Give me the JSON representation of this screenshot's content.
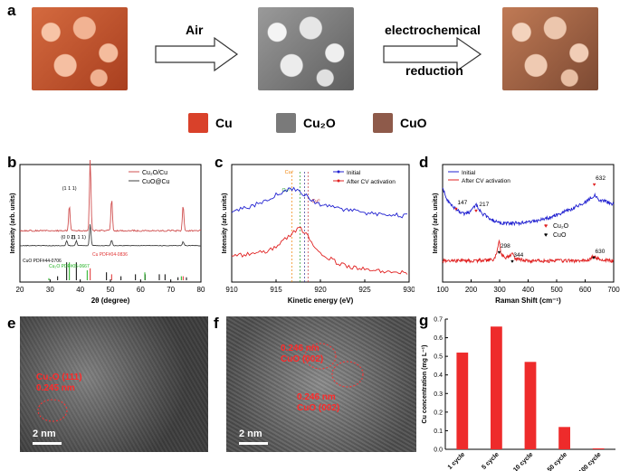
{
  "panel_a": {
    "label": "a",
    "step1": "Air",
    "step2_line1": "electrochemical",
    "step2_line2": "reduction",
    "legend": [
      "Cu",
      "Cu₂O",
      "CuO"
    ],
    "legend_colors": [
      "#d9412a",
      "#7a7a7a",
      "#8e5a4a"
    ]
  },
  "panel_b": {
    "label": "b"
  },
  "panel_c": {
    "label": "c"
  },
  "panel_d": {
    "label": "d"
  },
  "panel_e": {
    "label": "e",
    "annotation_line1": "Cu₂O (111)",
    "annotation_line2": "0.245 nm",
    "scale": "2 nm"
  },
  "panel_f": {
    "label": "f",
    "annotation1_line1": "0.246 nm",
    "annotation1_line2": "CuO (002)",
    "annotation2_line1": "0.246 nm",
    "annotation2_line2": "CuO (002)",
    "scale": "2 nm"
  },
  "panel_g": {
    "label": "g"
  },
  "chart_data": [
    {
      "type": "line",
      "panel": "b",
      "xlabel": "2θ (degree)",
      "ylabel": "Intensity (arb. units)",
      "xlim": [
        20,
        80
      ],
      "xticks": [
        "20",
        "30",
        "40",
        "50",
        "60",
        "70",
        "80"
      ],
      "legend": [
        "Cu₂O/Cu",
        "CuO@Cu"
      ],
      "series": [
        {
          "name": "Cu₂O/Cu",
          "color": "#d05050",
          "peaks": [
            [
              36.4,
              0.35
            ],
            [
              43.3,
              1.0
            ],
            [
              50.4,
              0.45
            ],
            [
              74.1,
              0.35
            ]
          ]
        },
        {
          "name": "CuO@Cu",
          "color": "#404040",
          "peaks": [
            [
              35.5,
              0.18
            ],
            [
              38.7,
              0.18
            ],
            [
              43.3,
              0.8
            ],
            [
              50.4,
              0.2
            ],
            [
              74.1,
              0.15
            ]
          ]
        }
      ],
      "annotations": [
        "(1 1 1)",
        "(0 0 2)",
        "(1 1 1)"
      ],
      "references": [
        {
          "label": "CuO PDF#44-0706",
          "color": "#000000",
          "lines": [
            [
              32.5,
              0.2
            ],
            [
              35.5,
              0.9
            ],
            [
              38.7,
              0.9
            ],
            [
              48.7,
              0.4
            ],
            [
              53.5,
              0.2
            ],
            [
              58.3,
              0.3
            ],
            [
              61.5,
              0.3
            ],
            [
              66.2,
              0.3
            ],
            [
              68.1,
              0.3
            ],
            [
              72.4,
              0.15
            ],
            [
              75.2,
              0.15
            ]
          ]
        },
        {
          "label": "Cu PDF#04-0836",
          "color": "#e03030",
          "lines": [
            [
              43.3,
              0.6
            ],
            [
              50.4,
              0.3
            ],
            [
              74.1,
              0.2
            ]
          ]
        },
        {
          "label": "Cu₂O PDF#05-0667",
          "color": "#20b020",
          "lines": [
            [
              29.6,
              0.1
            ],
            [
              36.4,
              0.9
            ],
            [
              42.3,
              0.5
            ],
            [
              61.4,
              0.4
            ],
            [
              73.5,
              0.2
            ]
          ]
        }
      ]
    },
    {
      "type": "line",
      "panel": "c",
      "xlabel": "Kinetic energy (eV)",
      "ylabel": "Intensity (arb. units)",
      "xlim": [
        910,
        930
      ],
      "xticks": [
        "910",
        "915",
        "920",
        "925",
        "930"
      ],
      "legend": [
        "Initial",
        "After CV activation"
      ],
      "series": [
        {
          "name": "Initial",
          "color": "#2020d0",
          "x": [
            910,
            912,
            914,
            915,
            916,
            917,
            918,
            919,
            920,
            922,
            924,
            926,
            928,
            930
          ],
          "y": [
            0.6,
            0.64,
            0.7,
            0.74,
            0.78,
            0.8,
            0.75,
            0.7,
            0.66,
            0.62,
            0.6,
            0.58,
            0.57,
            0.56
          ]
        },
        {
          "name": "After CV activation",
          "color": "#e02020",
          "x": [
            910,
            912,
            914,
            915,
            916,
            917,
            917.5,
            918,
            919,
            920,
            922,
            924,
            926,
            928,
            930
          ],
          "y": [
            0.22,
            0.24,
            0.26,
            0.3,
            0.36,
            0.42,
            0.46,
            0.44,
            0.34,
            0.24,
            0.16,
            0.12,
            0.1,
            0.09,
            0.08
          ]
        }
      ],
      "markers": [
        {
          "label": "Cu⁰",
          "x": 918.6,
          "color": "#c03030"
        },
        {
          "label": "Cu⁺",
          "x": 916.8,
          "color": "#f08000"
        },
        {
          "label": "Cu²⁺",
          "x": 917.7,
          "color": "#20a020"
        },
        {
          "label": "",
          "x": 918.2,
          "color": "#303090"
        }
      ]
    },
    {
      "type": "line",
      "panel": "d",
      "xlabel": "Raman Shift (cm⁻¹)",
      "ylabel": "Intensity (arb. units)",
      "xlim": [
        100,
        700
      ],
      "xticks": [
        "100",
        "200",
        "300",
        "400",
        "500",
        "600",
        "700"
      ],
      "legend": [
        "Initial",
        "After CV activation"
      ],
      "species": [
        [
          "♥",
          "Cu₂O"
        ],
        [
          "♥",
          "CuO"
        ]
      ],
      "series": [
        {
          "name": "Initial",
          "color": "#2020d0",
          "x": [
            100,
            120,
            147,
            170,
            200,
            217,
            240,
            280,
            320,
            360,
            400,
            450,
            500,
            550,
            600,
            632,
            650,
            680,
            700
          ],
          "y": [
            0.8,
            0.68,
            0.62,
            0.58,
            0.6,
            0.66,
            0.58,
            0.52,
            0.5,
            0.5,
            0.51,
            0.53,
            0.57,
            0.62,
            0.68,
            0.74,
            0.7,
            0.68,
            0.66
          ]
        },
        {
          "name": "After CV activation",
          "color": "#e02020",
          "x": [
            100,
            200,
            280,
            290,
            298,
            305,
            320,
            335,
            344,
            355,
            400,
            500,
            600,
            620,
            630,
            640,
            700
          ],
          "y": [
            0.18,
            0.18,
            0.19,
            0.24,
            0.36,
            0.24,
            0.2,
            0.22,
            0.26,
            0.2,
            0.18,
            0.18,
            0.18,
            0.2,
            0.23,
            0.2,
            0.18
          ]
        }
      ],
      "peak_labels": [
        {
          "x": 147,
          "label": "147",
          "color": "#e02020"
        },
        {
          "x": 217,
          "label": "217",
          "color": "#e02020"
        },
        {
          "x": 632,
          "label": "632",
          "color": "#e02020"
        },
        {
          "x": 298,
          "label": "298",
          "color": "#000000"
        },
        {
          "x": 344,
          "label": "344",
          "color": "#000000"
        },
        {
          "x": 630,
          "label": "630",
          "color": "#000000"
        }
      ]
    },
    {
      "type": "bar",
      "panel": "g",
      "categories": [
        "1 cycle",
        "5 cycle",
        "10 cycle",
        "50 cycle",
        "100 cycle"
      ],
      "values": [
        0.52,
        0.66,
        0.47,
        0.12,
        0.005
      ],
      "ylabel": "Cu concentration (mg L⁻¹)",
      "ylim": [
        0,
        0.7
      ],
      "yticks": [
        "0.0",
        "0.1",
        "0.2",
        "0.3",
        "0.4",
        "0.5",
        "0.6",
        "0.7"
      ],
      "color": "#ee2b2b"
    }
  ]
}
